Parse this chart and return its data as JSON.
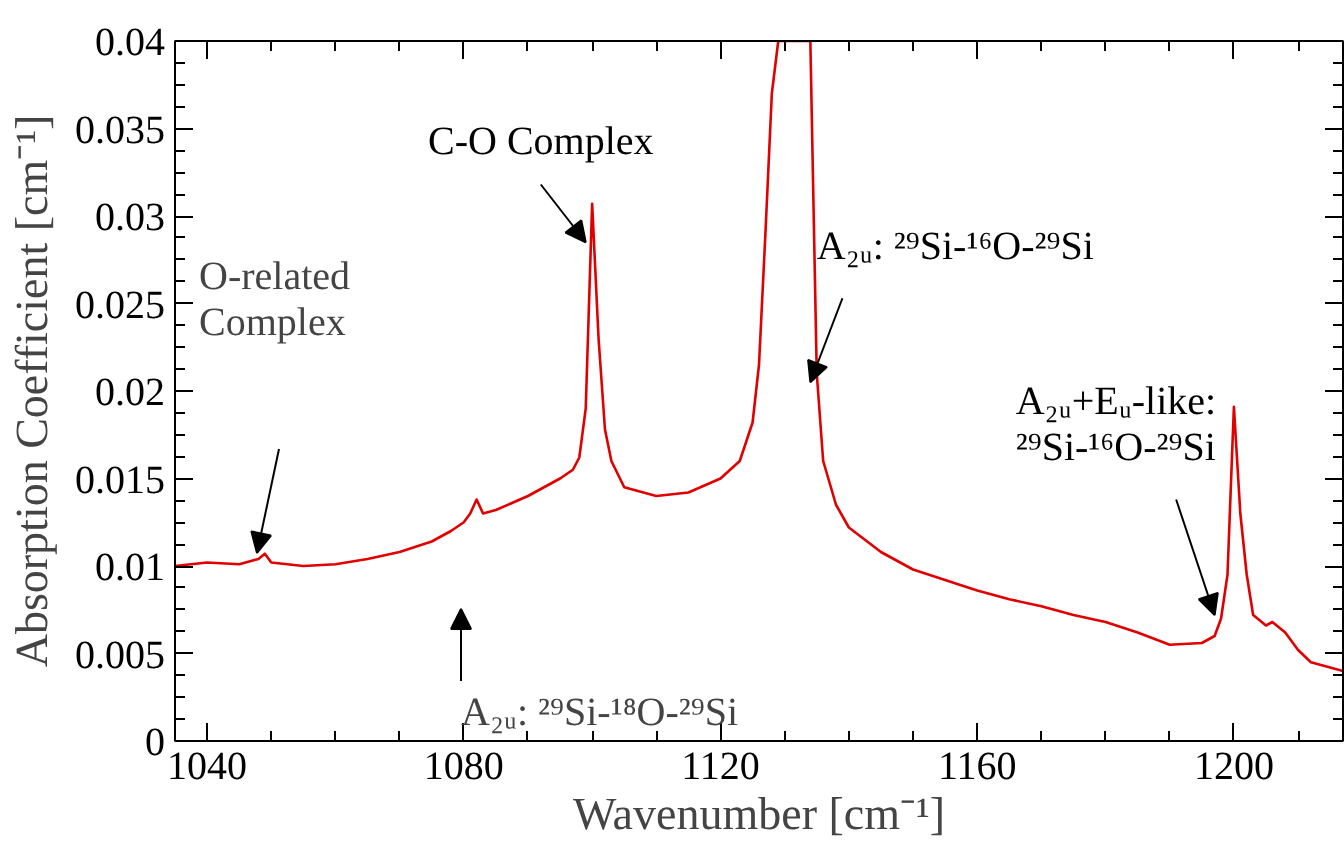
{
  "chart_data": {
    "type": "line",
    "xlabel": "Wavenumber [cm⁻¹]",
    "ylabel": "Absorption Coefficient [cm⁻¹]",
    "x": [
      1035,
      1040,
      1045,
      1048,
      1049,
      1050,
      1055,
      1060,
      1065,
      1070,
      1075,
      1078,
      1080,
      1081,
      1082,
      1083,
      1085,
      1090,
      1095,
      1097,
      1098,
      1099,
      1100,
      1101,
      1102,
      1103,
      1105,
      1110,
      1115,
      1120,
      1123,
      1125,
      1126,
      1127,
      1128,
      1129,
      1134,
      1135,
      1136,
      1138,
      1140,
      1145,
      1150,
      1155,
      1160,
      1165,
      1170,
      1175,
      1180,
      1185,
      1190,
      1195,
      1197,
      1198,
      1199,
      1200,
      1201,
      1202,
      1203,
      1205,
      1206,
      1208,
      1210,
      1212,
      1215,
      1217
    ],
    "series": [
      {
        "color": "#e00000",
        "values": [
          0.01,
          0.0102,
          0.0101,
          0.0104,
          0.0107,
          0.0102,
          0.01,
          0.0101,
          0.0104,
          0.0108,
          0.0114,
          0.012,
          0.0125,
          0.013,
          0.0138,
          0.013,
          0.0132,
          0.014,
          0.015,
          0.0155,
          0.0162,
          0.019,
          0.0307,
          0.023,
          0.0178,
          0.016,
          0.0145,
          0.014,
          0.0142,
          0.015,
          0.016,
          0.0182,
          0.0215,
          0.029,
          0.037,
          0.04,
          0.04,
          0.021,
          0.016,
          0.0135,
          0.0122,
          0.0108,
          0.0098,
          0.0092,
          0.0086,
          0.0081,
          0.0077,
          0.0072,
          0.0068,
          0.0062,
          0.0055,
          0.0056,
          0.006,
          0.007,
          0.0095,
          0.0191,
          0.013,
          0.0095,
          0.0072,
          0.0066,
          0.0068,
          0.0062,
          0.0052,
          0.0045,
          0.0042,
          0.004
        ]
      }
    ],
    "xlim": [
      1035,
      1217
    ],
    "ylim": [
      0,
      0.04
    ],
    "xticks": [
      1040,
      1080,
      1120,
      1160,
      1200
    ],
    "yticks": [
      0,
      0.005,
      0.01,
      0.015,
      0.02,
      0.025,
      0.03,
      0.035,
      0.04
    ],
    "grid": false,
    "marker": "none",
    "line_style": "solid",
    "annotations": [
      "O-related\nComplex",
      {
        "text": "C-O Complex",
        "x": 1099,
        "y": 0.0285
      },
      "A₂ᵤ: ²⁹Si-¹⁸O-²⁹Si",
      {
        "text": "A₂ᵤ: ²⁹Si-¹⁶O-²⁹Si",
        "x": 1134,
        "y": 0.0205
      },
      {
        "text": "A₂ᵤ+Eᵤ-like:\n²⁹Si-¹⁶O-²⁹Si",
        "x": 1197,
        "y": 0.0072
      }
    ]
  }
}
